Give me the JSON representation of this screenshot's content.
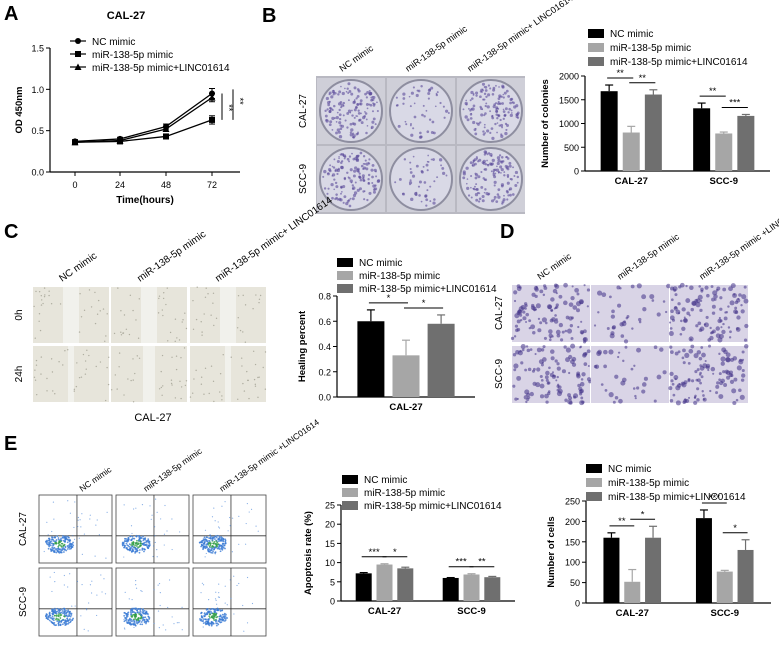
{
  "panels": {
    "A": {
      "letter": "A"
    },
    "B": {
      "letter": "B",
      "row_labels": [
        "CAL-27",
        "SCC-9"
      ],
      "col_labels": [
        "NC mimic",
        "miR-138-5p mimic",
        "miR-138-5p mimic+ LINC01614"
      ]
    },
    "C": {
      "letter": "C",
      "row_labels": [
        "0h",
        "24h"
      ],
      "col_labels": [
        "NC mimic",
        "miR-138-5p mimic",
        "miR-138-5p mimic+ LINC01614"
      ],
      "caption": "CAL-27"
    },
    "D": {
      "letter": "D",
      "row_labels": [
        "CAL-27",
        "SCC-9"
      ],
      "col_labels": [
        "NC mimic",
        "miR-138-5p mimic",
        "miR-138-5p mimic +LINC01614"
      ]
    },
    "E": {
      "letter": "E",
      "row_labels": [
        "CAL-27",
        "SCC-9"
      ],
      "col_labels": [
        "NC mimic",
        "miR-138-5p mimic",
        "miR-138-5p mimic +LINC01614"
      ]
    }
  },
  "colors": {
    "nc": "#000000",
    "mir": "#a6a6a6",
    "combo": "#6f6f6f",
    "plate": "#d9d9e6",
    "purple": "#5a4a9a",
    "wound": "#d8d6cc",
    "flow": "#3a7bd5"
  },
  "chart_data": [
    {
      "id": "A",
      "type": "line",
      "title": "CAL-27",
      "xlabel": "Time(hours)",
      "ylabel": "OD 450nm",
      "x": [
        0,
        24,
        48,
        72
      ],
      "ylim": [
        0,
        1.5
      ],
      "yticks": [
        "0.0",
        "0.5",
        "1.0",
        "1.5"
      ],
      "series": [
        {
          "name": "NC mimic",
          "values": [
            0.37,
            0.4,
            0.55,
            0.95
          ],
          "err": [
            0.02,
            0.02,
            0.03,
            0.06
          ],
          "marker": "circle"
        },
        {
          "name": "miR-138-5p mimic",
          "values": [
            0.36,
            0.37,
            0.43,
            0.63
          ],
          "err": [
            0.02,
            0.02,
            0.03,
            0.05
          ],
          "marker": "square"
        },
        {
          "name": "miR-138-5p mimic+LINC01614",
          "values": [
            0.36,
            0.38,
            0.52,
            0.9
          ],
          "err": [
            0.02,
            0.02,
            0.03,
            0.05
          ],
          "marker": "triangle"
        }
      ],
      "sig": [
        "**",
        "**"
      ]
    },
    {
      "id": "B",
      "type": "bar",
      "ylabel": "Number of colonies",
      "categories": [
        "CAL-27",
        "SCC-9"
      ],
      "ylim": [
        0,
        2000
      ],
      "yticks": [
        "0",
        "500",
        "1000",
        "1500",
        "2000"
      ],
      "series": [
        {
          "name": "NC mimic",
          "values": [
            1680,
            1320
          ],
          "err": [
            130,
            110
          ]
        },
        {
          "name": "miR-138-5p mimic",
          "values": [
            810,
            790
          ],
          "err": [
            130,
            30
          ]
        },
        {
          "name": "miR-138-5p mimic+LINC01614",
          "values": [
            1610,
            1160
          ],
          "err": [
            100,
            30
          ]
        }
      ],
      "sig": [
        [
          "**",
          "**"
        ],
        [
          "**",
          "***"
        ]
      ]
    },
    {
      "id": "C",
      "type": "bar",
      "ylabel": "Healing percent",
      "categories": [
        "CAL-27"
      ],
      "ylim": [
        0,
        0.8
      ],
      "yticks": [
        "0.0",
        "0.2",
        "0.4",
        "0.6",
        "0.8"
      ],
      "series": [
        {
          "name": "NC mimic",
          "values": [
            0.6
          ],
          "err": [
            0.09
          ]
        },
        {
          "name": "miR-138-5p mimic",
          "values": [
            0.33
          ],
          "err": [
            0.12
          ]
        },
        {
          "name": "miR-138-5p mimic+LINC01614",
          "values": [
            0.58
          ],
          "err": [
            0.07
          ]
        }
      ],
      "sig": [
        [
          "*",
          "*"
        ]
      ]
    },
    {
      "id": "E1",
      "type": "bar",
      "ylabel": "Apoptosis rate (%)",
      "categories": [
        "CAL-27",
        "SCC-9"
      ],
      "ylim": [
        0,
        25
      ],
      "yticks": [
        "0",
        "5",
        "10",
        "15",
        "20",
        "25"
      ],
      "series": [
        {
          "name": "NC mimic",
          "values": [
            7.2,
            6.0
          ],
          "err": [
            0.2,
            0.1
          ]
        },
        {
          "name": "miR-138-5p mimic",
          "values": [
            9.5,
            6.9
          ],
          "err": [
            0.2,
            0.2
          ]
        },
        {
          "name": "miR-138-5p mimic+LINC01614",
          "values": [
            8.5,
            6.2
          ],
          "err": [
            0.3,
            0.2
          ]
        }
      ],
      "sig": [
        [
          "***",
          "*"
        ],
        [
          "***",
          "**"
        ]
      ]
    },
    {
      "id": "E2",
      "type": "bar",
      "ylabel": "Number of cells",
      "categories": [
        "CAL-27",
        "SCC-9"
      ],
      "ylim": [
        0,
        250
      ],
      "yticks": [
        "0",
        "50",
        "100",
        "150",
        "200",
        "250"
      ],
      "series": [
        {
          "name": "NC mimic",
          "values": [
            160,
            208
          ],
          "err": [
            12,
            20
          ]
        },
        {
          "name": "miR-138-5p mimic",
          "values": [
            52,
            77
          ],
          "err": [
            30,
            3
          ]
        },
        {
          "name": "miR-138-5p mimic+LINC01614",
          "values": [
            160,
            130
          ],
          "err": [
            28,
            25
          ]
        }
      ],
      "sig": [
        [
          "**",
          "*"
        ],
        [
          "***",
          "*"
        ]
      ]
    }
  ]
}
